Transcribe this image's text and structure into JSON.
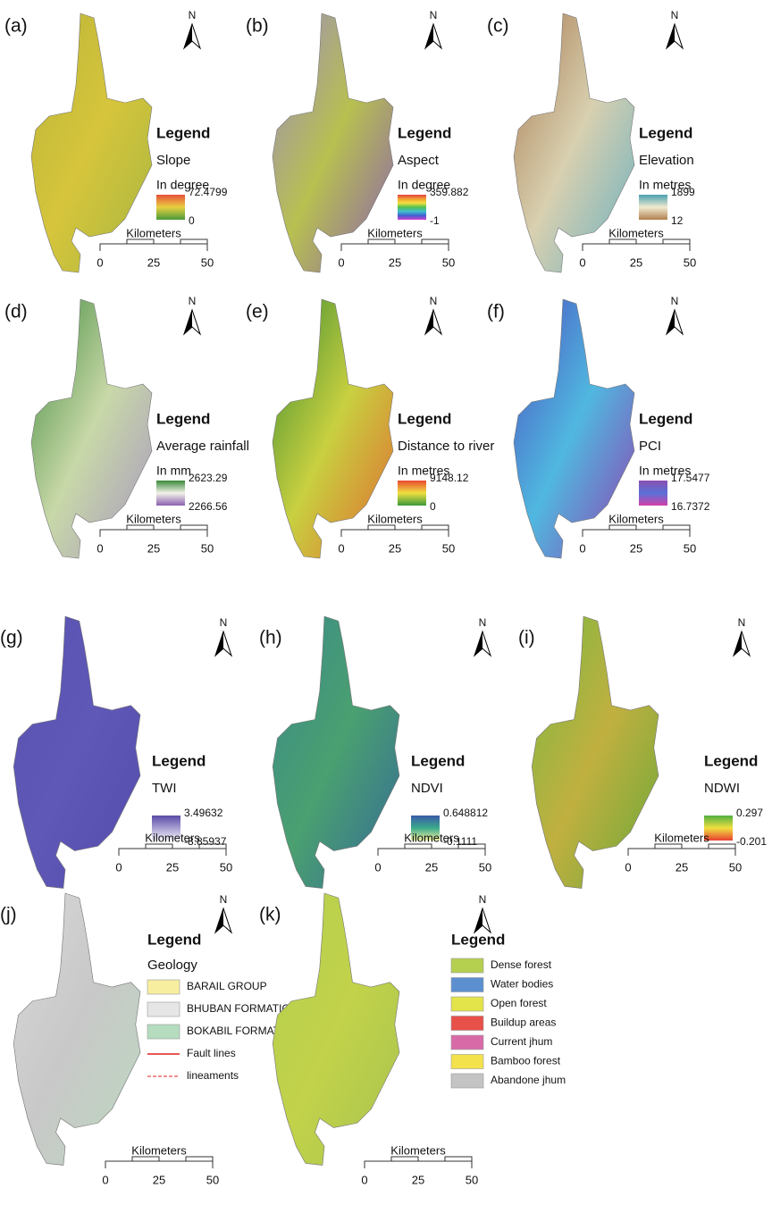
{
  "panels": [
    {
      "label": "(a)",
      "north": "N",
      "legend": "Legend",
      "variable": "Slope",
      "unit": "In degree",
      "max": "72.4799",
      "min": "0",
      "colors": [
        "#e8503a",
        "#e8d040",
        "#4a9a3a"
      ],
      "map_colors": [
        "#b9b437",
        "#d6c53c",
        "#a7b640"
      ],
      "scale": {
        "label": "Kilometers",
        "ticks": [
          0,
          25,
          50
        ]
      }
    },
    {
      "label": "(b)",
      "north": "N",
      "legend": "Legend",
      "variable": "Aspect",
      "unit": "In degree",
      "max": "359.882",
      "min": "-1",
      "colors": [
        "#e84040",
        "#f0a030",
        "#f0e040",
        "#50c050",
        "#40c0d0",
        "#4060d0",
        "#d040d0"
      ],
      "map_colors": [
        "#9a8ac0",
        "#b8c050",
        "#8a60b0"
      ],
      "scale": {
        "label": "Kilometers",
        "ticks": [
          0,
          25,
          50
        ]
      }
    },
    {
      "label": "(c)",
      "north": "N",
      "legend": "Legend",
      "variable": "Elevation",
      "unit": "In metres",
      "max": "1899",
      "min": "12",
      "colors": [
        "#4aa0b0",
        "#f0ead0",
        "#b08050"
      ],
      "map_colors": [
        "#a87a50",
        "#d8d0b0",
        "#6ab0c0"
      ],
      "scale": {
        "label": "Kilometers",
        "ticks": [
          0,
          25,
          50
        ]
      }
    },
    {
      "label": "(d)",
      "north": "N",
      "legend": "Legend",
      "variable": "Average rainfall",
      "unit": "In mm",
      "max": "2623.29",
      "min": "2266.56",
      "colors": [
        "#3a8a3a",
        "#f2f2e8",
        "#8a60b0"
      ],
      "map_colors": [
        "#3f8a3c",
        "#c8d8a8",
        "#a898c0"
      ],
      "scale": {
        "label": "Kilometers",
        "ticks": [
          0,
          25,
          50
        ]
      }
    },
    {
      "label": "(e)",
      "north": "N",
      "legend": "Legend",
      "variable": "Distance to river",
      "unit": "In metres",
      "max": "9148.12",
      "min": "0",
      "colors": [
        "#e84a30",
        "#f0e040",
        "#3a9a3a"
      ],
      "map_colors": [
        "#3a8a30",
        "#c8d040",
        "#e06a30"
      ],
      "scale": {
        "label": "Kilometers",
        "ticks": [
          0,
          25,
          50
        ]
      }
    },
    {
      "label": "(f)",
      "north": "N",
      "legend": "Legend",
      "variable": "PCI",
      "unit": "In metres",
      "max": "17.5477",
      "min": "16.7372",
      "colors": [
        "#8a50b0",
        "#5a70d8",
        "#d040a8"
      ],
      "map_colors": [
        "#4a50c0",
        "#50b8e0",
        "#9040b0"
      ],
      "scale": {
        "label": "Kilometers",
        "ticks": [
          0,
          25,
          50
        ]
      }
    },
    {
      "label": "(g)",
      "north": "N",
      "legend": "Legend",
      "variable": "TWI",
      "unit": "",
      "max": "3.49632",
      "min": "-8.85937",
      "colors": [
        "#5a4aa8",
        "#f4f2fa"
      ],
      "map_colors": [
        "#5a52b0",
        "#5f58b6",
        "#554cac"
      ],
      "scale": {
        "label": "Kilometers",
        "ticks": [
          0,
          25,
          50
        ]
      }
    },
    {
      "label": "(h)",
      "north": "N",
      "legend": "Legend",
      "variable": "NDVI",
      "unit": "",
      "max": "0.648812",
      "min": "-0.1111",
      "colors": [
        "#3a5aa8",
        "#3aaa8a",
        "#f0f0a0"
      ],
      "map_colors": [
        "#3a8a8a",
        "#4aa070",
        "#356a98"
      ],
      "scale": {
        "label": "Kilometers",
        "ticks": [
          0,
          25,
          50
        ]
      }
    },
    {
      "label": "(i)",
      "north": "N",
      "legend": "Legend",
      "variable": "NDWI",
      "unit": "",
      "max": "0.297",
      "min": "-0.201",
      "colors": [
        "#50b040",
        "#f0e040",
        "#e84030"
      ],
      "map_colors": [
        "#7ab840",
        "#c0b040",
        "#6aa838"
      ],
      "scale": {
        "label": "Kilometers",
        "ticks": [
          0,
          25,
          50
        ]
      }
    },
    {
      "label": "(j)",
      "north": "N",
      "legend": "Legend",
      "variable": "Geology",
      "map_colors": [
        "#d8d8d8",
        "#c8c8c8",
        "#bcd8c0"
      ],
      "items": [
        {
          "label": "BARAIL GROUP",
          "color": "#f7eea0",
          "kind": "box"
        },
        {
          "label": "BHUBAN FORMATION",
          "color": "#e6e6e6",
          "kind": "box"
        },
        {
          "label": "BOKABIL FORMATION",
          "color": "#b5dcbe",
          "kind": "box"
        },
        {
          "label": "Fault lines",
          "color": "#e02020",
          "kind": "line"
        },
        {
          "label": "lineaments",
          "color": "#e02020",
          "kind": "dashed"
        }
      ],
      "scale": {
        "label": "Kilometers",
        "ticks": [
          0,
          25,
          50
        ]
      }
    },
    {
      "label": "(k)",
      "north": "N",
      "legend": "Legend",
      "map_colors": [
        "#b5cf4f",
        "#c2d24a",
        "#a8c450"
      ],
      "items": [
        {
          "label": "Dense forest",
          "color": "#b5cf4f",
          "kind": "box"
        },
        {
          "label": "Water bodies",
          "color": "#5b8fd0",
          "kind": "box"
        },
        {
          "label": "Open forest",
          "color": "#e3e44a",
          "kind": "box"
        },
        {
          "label": "Buildup areas",
          "color": "#e8504a",
          "kind": "box"
        },
        {
          "label": "Current jhum",
          "color": "#d96aa8",
          "kind": "box"
        },
        {
          "label": "Bamboo forest",
          "color": "#f3e24c",
          "kind": "box"
        },
        {
          "label": "Abandone jhum",
          "color": "#c4c4c4",
          "kind": "box"
        }
      ],
      "scale": {
        "label": "Kilometers",
        "ticks": [
          0,
          25,
          50
        ]
      }
    }
  ]
}
